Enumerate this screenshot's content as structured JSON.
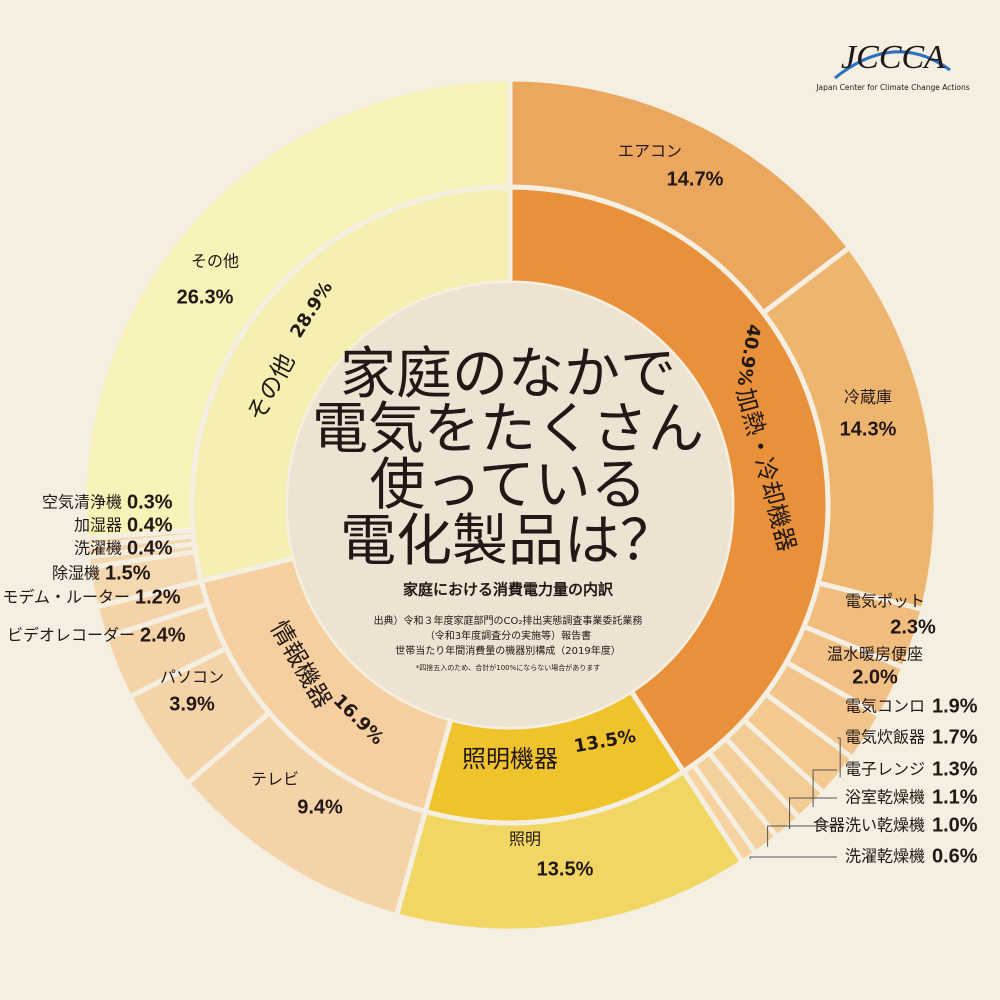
{
  "chart_data": {
    "type": "sunburst",
    "title_lines": [
      "家庭のなかで",
      "電気をたくさん",
      "使っている",
      "電化製品は？"
    ],
    "subtitle": "家庭における消費電力量の内訳",
    "source_lines": [
      "出典）令和３年度家庭部門のCO₂排出実態調査事業委託業務",
      "（令和3年度調査分の実施等）報告書",
      "世帯当たり年間消費量の機器別構成（2019年度）"
    ],
    "note": "*四捨五入のため、合計が100%にならない場合があります",
    "logo": "JCCCA",
    "logo_caption": "Japan Center for Climate Change Actions",
    "groups": [
      {
        "name": "加熱・冷却機器",
        "value": 40.9,
        "value_label": "40.9%",
        "color": "#e8903a",
        "children": {
          "categories": [
            "エアコン",
            "冷蔵庫",
            "電気ポット",
            "温水暖房便座",
            "電気コンロ",
            "電気炊飯器",
            "電子レンジ",
            "浴室乾燥機",
            "食器洗い乾燥機",
            "洗濯乾燥機"
          ],
          "values": [
            14.7,
            14.3,
            2.3,
            2.0,
            1.9,
            1.7,
            1.3,
            1.1,
            1.0,
            0.6
          ],
          "value_labels": [
            "14.7%",
            "14.3%",
            "2.3%",
            "2.0%",
            "1.9%",
            "1.7%",
            "1.3%",
            "1.1%",
            "1.0%",
            "0.6%"
          ],
          "colors": [
            "#eba75e",
            "#eeb56f",
            "#f0bd7e",
            "#f1c084",
            "#f2c58c",
            "#f3c990",
            "#f3cb94",
            "#f4ce98",
            "#f4d09c",
            "#f5d2a0"
          ]
        }
      },
      {
        "name": "照明機器",
        "value": 13.5,
        "value_label": "13.5%",
        "color": "#efc32c",
        "children": {
          "categories": [
            "照明"
          ],
          "values": [
            13.5
          ],
          "value_labels": [
            "13.5%"
          ],
          "colors": [
            "#f1d663"
          ]
        }
      },
      {
        "name": "情報機器",
        "value": 16.9,
        "value_label": "16.9%",
        "color": "#f5cfa0",
        "children": {
          "categories": [
            "テレビ",
            "パソコン",
            "ビデオレコーダー",
            "モデム・ルーター"
          ],
          "values": [
            9.4,
            3.9,
            2.4,
            1.2
          ],
          "value_labels": [
            "9.4%",
            "3.9%",
            "2.4%",
            "1.2%"
          ],
          "colors": [
            "#f4d3a8",
            "#f4d3a8",
            "#f4d3a8",
            "#f4d3a8"
          ]
        }
      },
      {
        "name": "その他",
        "value": 28.9,
        "value_label": "28.9%",
        "color": "#f6efb2",
        "children": {
          "categories": [
            "除湿機",
            "洗濯機",
            "加湿器",
            "空気清浄機",
            "その他"
          ],
          "values": [
            1.5,
            0.4,
            0.4,
            0.3,
            26.3
          ],
          "value_labels": [
            "1.5%",
            "0.4%",
            "0.4%",
            "0.3%",
            "26.3%"
          ],
          "colors": [
            "#f4d8b0",
            "#f4d8b0",
            "#f4d8b0",
            "#f4d8b0",
            "#f7f2b8"
          ]
        }
      }
    ]
  }
}
